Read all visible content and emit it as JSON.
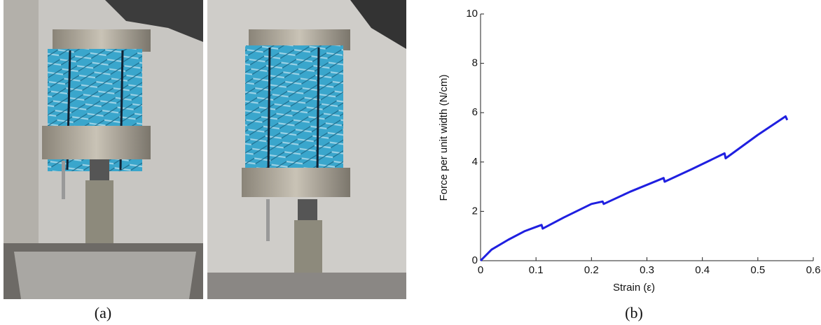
{
  "panel_labels": [
    "(a)",
    "(b)"
  ],
  "chart_data": {
    "type": "line",
    "xlabel": "Strain (ε)",
    "ylabel": "Force per unit width (N/cm)",
    "x": [
      0,
      0.02,
      0.05,
      0.08,
      0.11,
      0.112,
      0.15,
      0.2,
      0.22,
      0.222,
      0.27,
      0.33,
      0.332,
      0.38,
      0.44,
      0.442,
      0.5,
      0.55,
      0.553
    ],
    "values": [
      0,
      0.45,
      0.85,
      1.2,
      1.45,
      1.3,
      1.75,
      2.3,
      2.4,
      2.3,
      2.8,
      3.35,
      3.2,
      3.7,
      4.35,
      4.15,
      5.1,
      5.85,
      5.7
    ],
    "color": "#1f1fe0",
    "xlim": [
      0,
      0.6
    ],
    "xticks": [
      0,
      0.1,
      0.2,
      0.3,
      0.4,
      0.5,
      0.6
    ],
    "ylim": [
      0,
      10
    ],
    "yticks": [
      0,
      2,
      4,
      6,
      8,
      10
    ]
  }
}
